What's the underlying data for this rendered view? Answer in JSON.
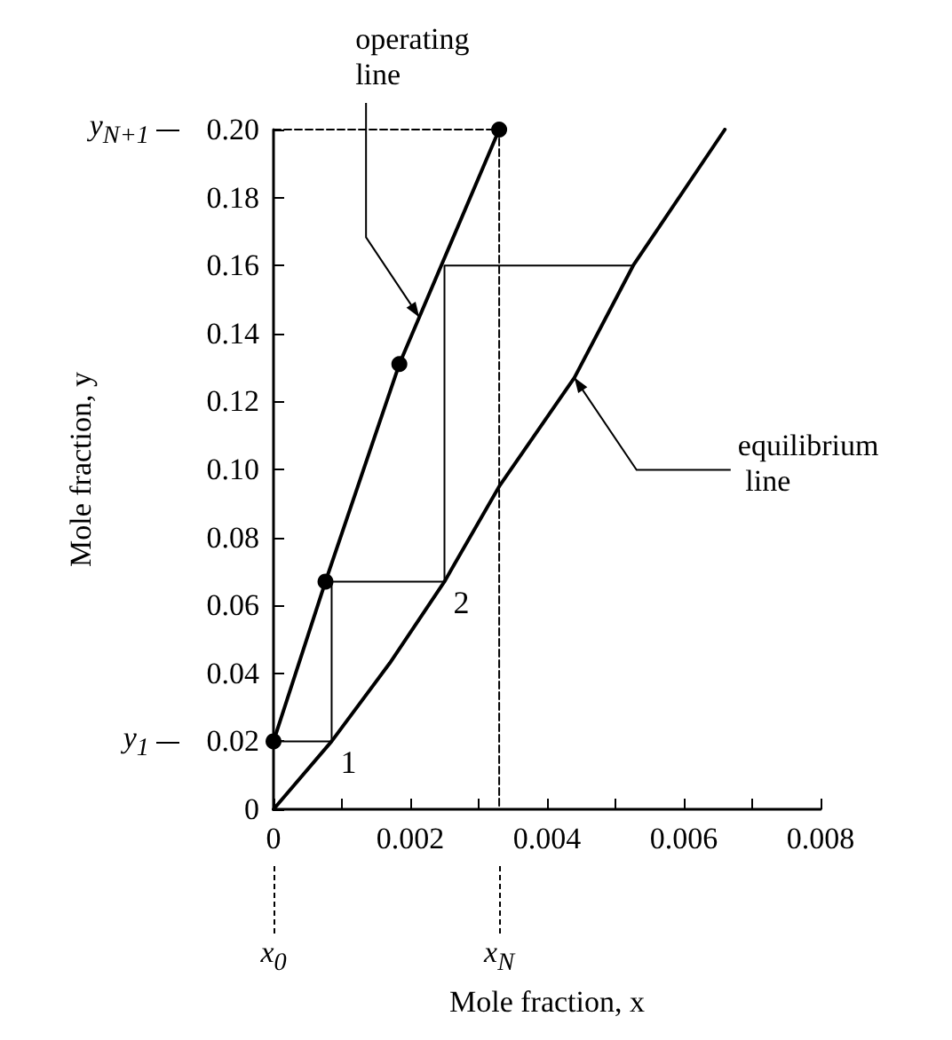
{
  "chart_data": {
    "type": "line",
    "xlabel": "Mole fraction, x",
    "ylabel": "Mole fraction, y",
    "xlim": [
      0,
      0.008
    ],
    "ylim": [
      0,
      0.2
    ],
    "xticks": [
      0,
      {
        "value": 0.001,
        "label": null
      },
      0.002,
      {
        "value": 0.003,
        "label": null
      },
      0.004,
      {
        "value": 0.005,
        "label": null
      },
      0.006,
      {
        "value": 0.007,
        "label": null
      },
      0.008
    ],
    "yticks": [
      0,
      0.02,
      0.04,
      0.06,
      0.08,
      {
        "value": 0.1,
        "label": "0.10"
      },
      0.12,
      0.14,
      0.16,
      0.18,
      {
        "value": 0.2,
        "label": "0.20"
      }
    ],
    "grid": false,
    "legend": false,
    "series": [
      {
        "name": "operating line",
        "color": "#000000",
        "marker": "circle",
        "line_style": "solid",
        "x": [
          0,
          0.00076,
          0.00184,
          0.0033
        ],
        "values": [
          0.02,
          0.067,
          0.131,
          0.2
        ]
      },
      {
        "name": "equilibrium line",
        "color": "#000000",
        "marker": "none",
        "line_style": "solid",
        "x": [
          0,
          0.00085,
          0.0017,
          0.0025,
          0.0033,
          0.0044,
          0.00526,
          0.0066
        ],
        "values": [
          0,
          0.02,
          0.043,
          0.067,
          0.095,
          0.127,
          0.16,
          0.2
        ]
      },
      {
        "color": "#000000",
        "marker": "none",
        "line_style": "solid",
        "x": [
          0,
          0.00085,
          0.00085,
          0.0025,
          0.0025,
          0.00526
        ],
        "values": [
          0.02,
          0.02,
          0.067,
          0.067,
          0.16,
          0.16
        ]
      },
      {
        "color": "#000000",
        "marker": "none",
        "line_style": "dashed",
        "x": [
          0,
          0.0033,
          0.0033
        ],
        "values": [
          0.2,
          0.2,
          0
        ]
      }
    ],
    "annotations": [
      "y$_{N+1}$",
      "y$_{1}$",
      "x$_{0}$",
      "x$_{N}$",
      {
        "text": "1",
        "x": 0.00085,
        "y": 0.02
      },
      {
        "text": "2",
        "x": 0.0025,
        "y": 0.067
      }
    ]
  }
}
